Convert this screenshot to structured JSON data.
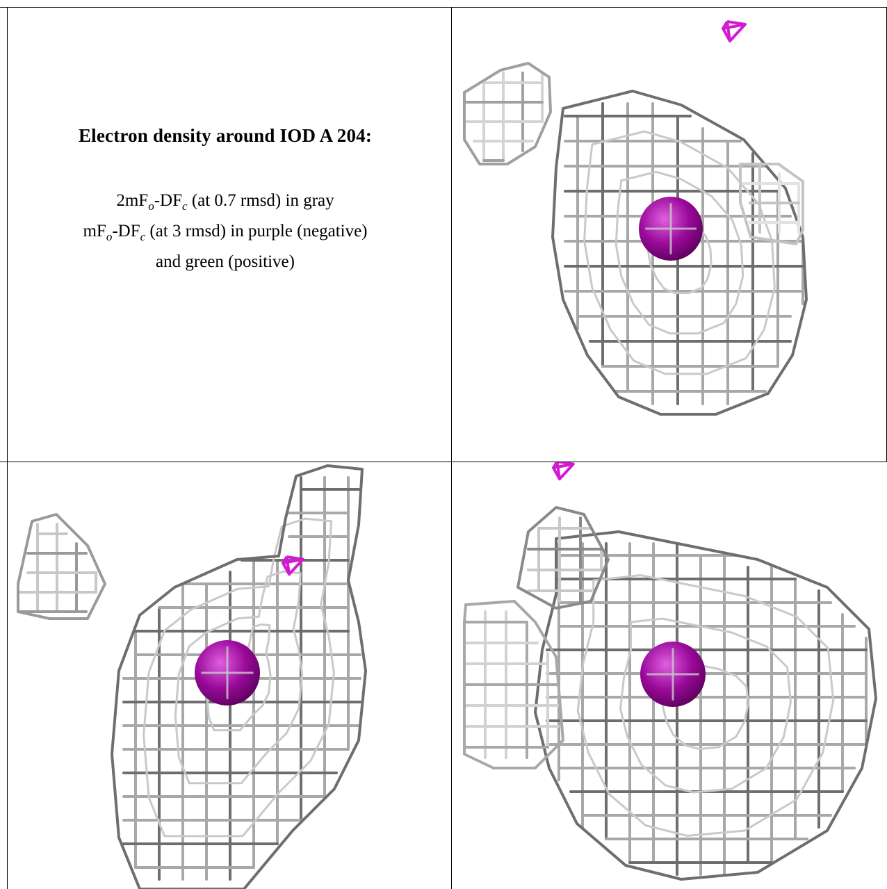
{
  "legend": {
    "title": "Electron density around IOD A 204:",
    "line1": "2mFₒ-DFᶜ (at 0.7 rmsd) in gray",
    "line1_parts": [
      "2mF",
      "o",
      "-DF",
      "c",
      " (at 0.7 rmsd) in gray"
    ],
    "line2_parts": [
      "mF",
      "o",
      "-DF",
      "c",
      " (at 3 rmsd) in purple (negative)"
    ],
    "line3": "and green (positive)"
  },
  "colors": {
    "mesh_gray": "#a8a8a8",
    "mesh_dark": "#6e6e6e",
    "atom_purple": "#9a0a9a",
    "negative_density": "#d21ad2",
    "positive_density": "#20c020",
    "grid_line": "#000000"
  },
  "panels": [
    {
      "name": "view-1",
      "atom": "IOD"
    },
    {
      "name": "view-2",
      "atom": "IOD"
    },
    {
      "name": "view-3",
      "atom": "IOD"
    }
  ]
}
